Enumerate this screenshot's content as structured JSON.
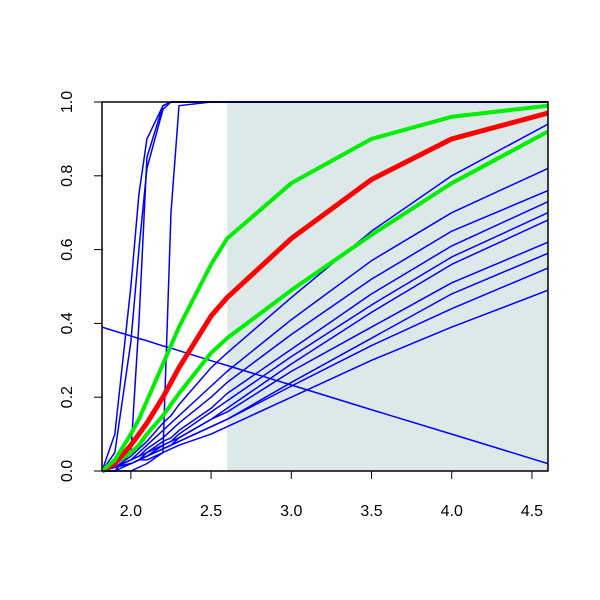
{
  "chart_data": {
    "type": "line",
    "x": [
      1.82,
      1.9,
      2.0,
      2.05,
      2.1,
      2.2,
      2.25,
      2.3,
      2.5,
      2.6,
      3.0,
      3.5,
      4.0,
      4.6
    ],
    "xlim": [
      1.82,
      4.6
    ],
    "ylim": [
      0,
      1
    ],
    "xticks": [
      {
        "value": 2,
        "label": "2.0"
      },
      2.5,
      {
        "value": 3,
        "label": "3.0"
      },
      3.5,
      {
        "value": 4,
        "label": "4.0"
      },
      4.5
    ],
    "yticks": [
      {
        "value": 0,
        "label": "0.0"
      },
      0.2,
      0.4,
      0.6,
      0.8,
      {
        "value": 1,
        "label": "1.0"
      }
    ],
    "shaded_region": {
      "x": [
        2.6,
        4.6
      ],
      "color": "#dde9e9"
    },
    "series": [
      {
        "color": "#0000ff",
        "width": 1.5,
        "values": [
          0,
          0.1,
          0.5,
          0.75,
          0.9,
          0.99,
          1,
          1,
          1,
          1,
          1,
          1,
          1,
          1
        ]
      },
      {
        "color": "#0000ff",
        "width": 1.5,
        "values": [
          0,
          0.05,
          0.35,
          0.6,
          0.82,
          0.98,
          1,
          1,
          1,
          1,
          1,
          1,
          1,
          1
        ]
      },
      {
        "color": "#0000ff",
        "width": 1.5,
        "values": [
          0,
          0,
          0.05,
          0.4,
          0.85,
          0.99,
          1,
          1,
          1,
          1,
          1,
          1,
          1,
          1
        ]
      },
      {
        "color": "#0000ff",
        "width": 1.5,
        "values": [
          0,
          0,
          0,
          0.01,
          0.02,
          0.05,
          0.7,
          0.99,
          1,
          1,
          1,
          1,
          1,
          1
        ]
      },
      {
        "color": "#0000ff",
        "width": 1.5,
        "values": [
          0.39,
          0.379,
          0.366,
          0.359,
          0.353,
          0.339,
          0.333,
          0.326,
          0.299,
          0.286,
          0.233,
          0.166,
          0.1,
          0.02
        ]
      },
      {
        "color": "#0000ff",
        "width": 1.5,
        "values": [
          0,
          0.01,
          0.04,
          0.06,
          0.08,
          0.13,
          0.15,
          0.18,
          0.28,
          0.32,
          0.47,
          0.65,
          0.8,
          0.94
        ]
      },
      {
        "color": "#0000ff",
        "width": 1.5,
        "values": [
          0,
          0.01,
          0.03,
          0.05,
          0.07,
          0.11,
          0.13,
          0.15,
          0.23,
          0.27,
          0.41,
          0.57,
          0.7,
          0.82
        ]
      },
      {
        "color": "#0000ff",
        "width": 1.5,
        "values": [
          0,
          0.01,
          0.03,
          0.04,
          0.06,
          0.09,
          0.11,
          0.13,
          0.2,
          0.24,
          0.37,
          0.52,
          0.65,
          0.76
        ]
      },
      {
        "color": "#0000ff",
        "width": 1.5,
        "values": [
          0,
          0.01,
          0.02,
          0.03,
          0.05,
          0.08,
          0.09,
          0.11,
          0.17,
          0.21,
          0.33,
          0.48,
          0.61,
          0.73
        ]
      },
      {
        "color": "#0000ff",
        "width": 1.5,
        "values": [
          0,
          0.01,
          0.02,
          0.03,
          0.04,
          0.07,
          0.08,
          0.1,
          0.16,
          0.19,
          0.31,
          0.45,
          0.58,
          0.7
        ]
      },
      {
        "color": "#0000ff",
        "width": 1.5,
        "values": [
          0,
          0,
          0.02,
          0.03,
          0.04,
          0.06,
          0.07,
          0.09,
          0.14,
          0.17,
          0.29,
          0.43,
          0.56,
          0.68
        ]
      },
      {
        "color": "#0000ff",
        "width": 1.5,
        "values": [
          0,
          0.01,
          0.03,
          0.04,
          0.05,
          0.07,
          0.08,
          0.09,
          0.14,
          0.16,
          0.27,
          0.39,
          0.51,
          0.62
        ]
      },
      {
        "color": "#0000ff",
        "width": 1.5,
        "values": [
          0,
          0.01,
          0.02,
          0.03,
          0.04,
          0.06,
          0.07,
          0.08,
          0.12,
          0.14,
          0.24,
          0.36,
          0.48,
          0.59
        ]
      },
      {
        "color": "#0000ff",
        "width": 1.5,
        "values": [
          0,
          0.01,
          0.02,
          0.03,
          0.04,
          0.06,
          0.07,
          0.08,
          0.12,
          0.14,
          0.23,
          0.34,
          0.44,
          0.55
        ]
      },
      {
        "color": "#0000ff",
        "width": 1.5,
        "values": [
          0,
          0.01,
          0.02,
          0.03,
          0.03,
          0.05,
          0.06,
          0.07,
          0.1,
          0.12,
          0.2,
          0.3,
          0.39,
          0.49
        ]
      },
      {
        "color": "#00ee00",
        "width": 4,
        "values": [
          0,
          0.02,
          0.05,
          0.07,
          0.1,
          0.15,
          0.18,
          0.21,
          0.32,
          0.36,
          0.49,
          0.64,
          0.78,
          0.92
        ]
      },
      {
        "color": "#ff0000",
        "width": 5,
        "values": [
          0,
          0.02,
          0.07,
          0.1,
          0.13,
          0.2,
          0.24,
          0.28,
          0.42,
          0.47,
          0.63,
          0.79,
          0.9,
          0.97
        ]
      },
      {
        "color": "#00ee00",
        "width": 4,
        "values": [
          0,
          0.03,
          0.1,
          0.14,
          0.19,
          0.29,
          0.34,
          0.39,
          0.56,
          0.63,
          0.78,
          0.9,
          0.96,
          0.99
        ]
      }
    ]
  }
}
